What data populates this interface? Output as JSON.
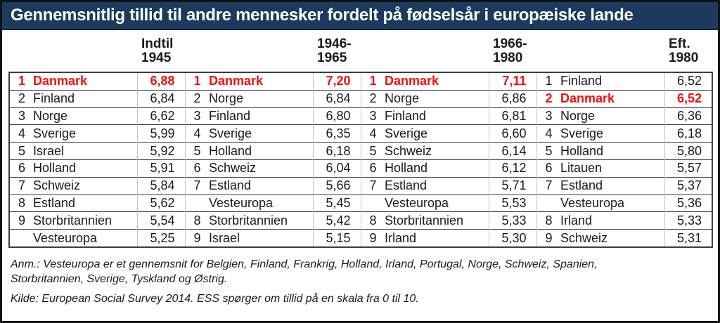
{
  "title": "Gennemsnitlig tillid til andre mennesker fordelt på fødselsår i europæiske lande",
  "colors": {
    "title_bar_bg": "#1c3a5e",
    "title_text": "#ffffff",
    "highlight_red": "#ee1010",
    "table_rule": "#3c3c3c"
  },
  "notes": {
    "anm_line1": "Anm.: Vesteuropa er et gennemsnit for Belgien, Finland, Frankrig, Holland, Irland, Portugal, Norge, Schweiz, Spanien,",
    "anm_line2": "Storbritannien, Sverige, Tyskland og Østrig.",
    "kilde": "Kilde: European Social Survey 2014. ESS spørger om tillid på en skala fra 0 til 10."
  },
  "chart_data": {
    "type": "table",
    "title": "Gennemsnitlig tillid til andre mennesker fordelt på fødselsår i europæiske lande",
    "value_scale": "0 til 10",
    "source": "European Social Survey 2014",
    "groups": [
      {
        "cohort": "Indtil 1945",
        "header_line1": "Indtil",
        "header_line2": "1945",
        "rows": [
          {
            "rank": 1,
            "country": "Danmark",
            "value": 6.88,
            "highlight": true
          },
          {
            "rank": 2,
            "country": "Finland",
            "value": 6.84
          },
          {
            "rank": 3,
            "country": "Norge",
            "value": 6.62
          },
          {
            "rank": 4,
            "country": "Sverige",
            "value": 5.99
          },
          {
            "rank": 5,
            "country": "Israel",
            "value": 5.92
          },
          {
            "rank": 6,
            "country": "Holland",
            "value": 5.91
          },
          {
            "rank": 7,
            "country": "Schweiz",
            "value": 5.84
          },
          {
            "rank": 8,
            "country": "Estland",
            "value": 5.62
          },
          {
            "rank": 9,
            "country": "Storbritannien",
            "value": 5.54
          },
          {
            "rank": null,
            "country": "Vesteuropa",
            "value": 5.25
          }
        ]
      },
      {
        "cohort": "1946-1965",
        "header_line1": "1946-",
        "header_line2": "1965",
        "rows": [
          {
            "rank": 1,
            "country": "Danmark",
            "value": 7.2,
            "highlight": true
          },
          {
            "rank": 2,
            "country": "Norge",
            "value": 6.84
          },
          {
            "rank": 3,
            "country": "Finland",
            "value": 6.8
          },
          {
            "rank": 4,
            "country": "Sverige",
            "value": 6.35
          },
          {
            "rank": 5,
            "country": "Holland",
            "value": 6.18
          },
          {
            "rank": 6,
            "country": "Schweiz",
            "value": 6.04
          },
          {
            "rank": 7,
            "country": "Estland",
            "value": 5.66
          },
          {
            "rank": null,
            "country": "Vesteuropa",
            "value": 5.45
          },
          {
            "rank": 8,
            "country": "Storbritannien",
            "value": 5.42
          },
          {
            "rank": 9,
            "country": "Israel",
            "value": 5.15
          }
        ]
      },
      {
        "cohort": "1966-1980",
        "header_line1": "1966-",
        "header_line2": "1980",
        "rows": [
          {
            "rank": 1,
            "country": "Danmark",
            "value": 7.11,
            "highlight": true
          },
          {
            "rank": 2,
            "country": "Norge",
            "value": 6.86
          },
          {
            "rank": 3,
            "country": "Finland",
            "value": 6.81
          },
          {
            "rank": 4,
            "country": "Sverige",
            "value": 6.6
          },
          {
            "rank": 5,
            "country": "Schweiz",
            "value": 6.14
          },
          {
            "rank": 6,
            "country": "Holland",
            "value": 6.12
          },
          {
            "rank": 7,
            "country": "Estland",
            "value": 5.71
          },
          {
            "rank": null,
            "country": "Vesteuropa",
            "value": 5.53
          },
          {
            "rank": 8,
            "country": "Storbritannien",
            "value": 5.33
          },
          {
            "rank": 9,
            "country": "Irland",
            "value": 5.3
          }
        ]
      },
      {
        "cohort": "Eft. 1980",
        "header_line1": "Eft.",
        "header_line2": "1980",
        "rows": [
          {
            "rank": 1,
            "country": "Finland",
            "value": 6.52
          },
          {
            "rank": 2,
            "country": "Danmark",
            "value": 6.52,
            "highlight": true
          },
          {
            "rank": 3,
            "country": "Norge",
            "value": 6.36
          },
          {
            "rank": 4,
            "country": "Sverige",
            "value": 6.18
          },
          {
            "rank": 5,
            "country": "Holland",
            "value": 5.8
          },
          {
            "rank": 6,
            "country": "Litauen",
            "value": 5.57
          },
          {
            "rank": 7,
            "country": "Estland",
            "value": 5.37
          },
          {
            "rank": null,
            "country": "Vesteuropa",
            "value": 5.36
          },
          {
            "rank": 8,
            "country": "Irland",
            "value": 5.33
          },
          {
            "rank": 9,
            "country": "Schweiz",
            "value": 5.31
          }
        ]
      }
    ]
  }
}
